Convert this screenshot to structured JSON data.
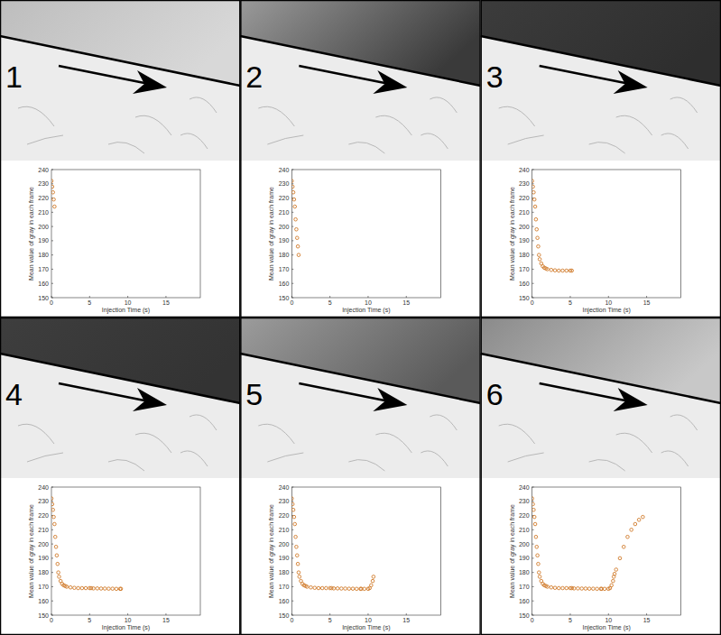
{
  "chart_data": [
    {
      "type": "scatter",
      "annotation": "1",
      "xlabel": "Injection Time (s)",
      "ylabel": "Mean value of gray in each frame",
      "color": "#d07a2a",
      "marker": "circle",
      "grid": false,
      "xlim": [
        0,
        19.5
      ],
      "xticks": [
        0,
        5,
        10,
        15
      ],
      "ylim": [
        150,
        240
      ],
      "yticks": [
        150,
        160,
        170,
        180,
        190,
        200,
        210,
        220,
        230,
        240
      ],
      "x": [
        0,
        0.1,
        0.2,
        0.3,
        0.4
      ],
      "values": [
        232,
        228,
        224,
        219,
        214
      ]
    },
    {
      "type": "scatter",
      "annotation": "2",
      "xlabel": "Injection Time (s)",
      "ylabel": "Mean value of gray in each frame",
      "color": "#d07a2a",
      "marker": "circle",
      "grid": false,
      "xlim": [
        0,
        19.5
      ],
      "xticks": [
        0,
        5,
        10,
        15
      ],
      "ylim": [
        150,
        240
      ],
      "yticks": [
        150,
        160,
        170,
        180,
        190,
        200,
        210,
        220,
        230,
        240
      ],
      "x": [
        0,
        0.1,
        0.2,
        0.3,
        0.4,
        0.5,
        0.6,
        0.7,
        0.8,
        0.9
      ],
      "values": [
        232,
        228,
        224,
        219,
        214,
        205,
        198,
        192,
        186,
        180
      ]
    },
    {
      "type": "scatter",
      "annotation": "3",
      "xlabel": "Injection Time (s)",
      "ylabel": "Mean value of gray in each frame",
      "color": "#d07a2a",
      "marker": "circle",
      "grid": false,
      "xlim": [
        0,
        19.5
      ],
      "xticks": [
        0,
        5,
        10,
        15
      ],
      "ylim": [
        150,
        240
      ],
      "yticks": [
        150,
        160,
        170,
        180,
        190,
        200,
        210,
        220,
        230,
        240
      ],
      "x": [
        0,
        0.1,
        0.2,
        0.3,
        0.4,
        0.5,
        0.6,
        0.7,
        0.8,
        0.9,
        1.0,
        1.2,
        1.4,
        1.6,
        1.8,
        2.0,
        2.5,
        3,
        3.5,
        4,
        4.5,
        5,
        5.2
      ],
      "values": [
        232,
        228,
        224,
        219,
        214,
        205,
        198,
        192,
        186,
        180,
        177,
        174,
        172,
        171,
        170.5,
        170,
        169.5,
        169.2,
        169,
        169,
        169,
        169,
        169
      ]
    },
    {
      "type": "scatter",
      "annotation": "4",
      "xlabel": "Injection Time (s)",
      "ylabel": "Mean value of gray in each frame",
      "color": "#d07a2a",
      "marker": "circle",
      "grid": false,
      "xlim": [
        0,
        19.5
      ],
      "xticks": [
        0,
        5,
        10,
        15
      ],
      "ylim": [
        150,
        240
      ],
      "yticks": [
        150,
        160,
        170,
        180,
        190,
        200,
        210,
        220,
        230,
        240
      ],
      "x": [
        0,
        0.1,
        0.2,
        0.3,
        0.4,
        0.5,
        0.6,
        0.7,
        0.8,
        0.9,
        1.0,
        1.2,
        1.4,
        1.6,
        1.8,
        2.0,
        2.5,
        3,
        3.5,
        4,
        4.5,
        5,
        5.2,
        5.5,
        6,
        6.5,
        7,
        7.5,
        8,
        8.5,
        9,
        9.1
      ],
      "values": [
        232,
        228,
        224,
        219,
        214,
        205,
        198,
        192,
        186,
        180,
        177,
        174,
        172,
        171,
        170.5,
        170,
        169.5,
        169.2,
        169,
        169,
        169,
        169,
        169,
        168.8,
        168.8,
        168.7,
        168.7,
        168.6,
        168.6,
        168.5,
        168.5,
        168.5
      ]
    },
    {
      "type": "scatter",
      "annotation": "5",
      "xlabel": "Injection Time (s)",
      "ylabel": "Mean value of gray in each frame",
      "color": "#d07a2a",
      "marker": "circle",
      "grid": false,
      "xlim": [
        0,
        19.5
      ],
      "xticks": [
        0,
        5,
        10,
        15
      ],
      "ylim": [
        150,
        240
      ],
      "yticks": [
        150,
        160,
        170,
        180,
        190,
        200,
        210,
        220,
        230,
        240
      ],
      "x": [
        0,
        0.1,
        0.2,
        0.3,
        0.4,
        0.5,
        0.6,
        0.7,
        0.8,
        0.9,
        1.0,
        1.2,
        1.4,
        1.6,
        1.8,
        2.0,
        2.5,
        3,
        3.5,
        4,
        4.5,
        5,
        5.2,
        5.5,
        6,
        6.5,
        7,
        7.5,
        8,
        8.5,
        9,
        9.1,
        9.5,
        10,
        10.2,
        10.4,
        10.6,
        10.7
      ],
      "values": [
        232,
        228,
        224,
        219,
        214,
        205,
        198,
        192,
        186,
        180,
        177,
        174,
        172,
        171,
        170.5,
        170,
        169.5,
        169.2,
        169,
        169,
        169,
        169,
        169,
        168.8,
        168.8,
        168.7,
        168.7,
        168.6,
        168.6,
        168.5,
        168.5,
        168.5,
        168.5,
        168.5,
        169,
        171,
        174,
        177
      ]
    },
    {
      "type": "scatter",
      "annotation": "6",
      "xlabel": "Injection Time (s)",
      "ylabel": "Mean value of gray in each frame",
      "color": "#d07a2a",
      "marker": "circle",
      "grid": false,
      "xlim": [
        0,
        19.5
      ],
      "xticks": [
        0,
        5,
        10,
        15
      ],
      "ylim": [
        150,
        240
      ],
      "yticks": [
        150,
        160,
        170,
        180,
        190,
        200,
        210,
        220,
        230,
        240
      ],
      "x": [
        0,
        0.1,
        0.2,
        0.3,
        0.4,
        0.5,
        0.6,
        0.7,
        0.8,
        0.9,
        1.0,
        1.2,
        1.4,
        1.6,
        1.8,
        2.0,
        2.5,
        3,
        3.5,
        4,
        4.5,
        5,
        5.2,
        5.5,
        6,
        6.5,
        7,
        7.5,
        8,
        8.5,
        9,
        9.1,
        9.5,
        10,
        10.2,
        10.4,
        10.6,
        10.7,
        10.8,
        11,
        11.5,
        12,
        12.5,
        13,
        13.5,
        14,
        14.5
      ],
      "values": [
        232,
        228,
        224,
        219,
        214,
        205,
        198,
        192,
        186,
        180,
        177,
        174,
        172,
        171,
        170.5,
        170,
        169.5,
        169.2,
        169,
        169,
        169,
        169,
        169,
        168.8,
        168.8,
        168.7,
        168.7,
        168.6,
        168.6,
        168.5,
        168.5,
        168.5,
        168.5,
        168.5,
        169,
        171,
        174,
        177,
        179,
        182,
        190,
        198,
        205,
        210,
        214,
        217,
        219
      ]
    }
  ]
}
